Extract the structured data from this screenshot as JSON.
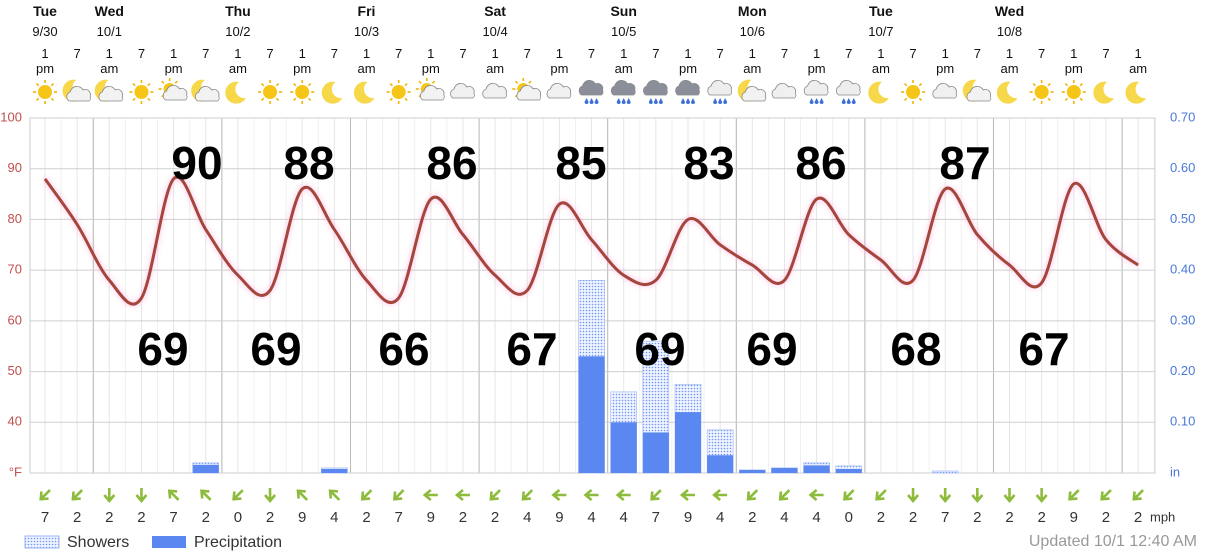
{
  "chart_data": {
    "type": "line",
    "days": [
      {
        "name": "Tue",
        "date": "9/30"
      },
      {
        "name": "Wed",
        "date": "10/1"
      },
      {
        "name": "Thu",
        "date": "10/2"
      },
      {
        "name": "Fri",
        "date": "10/3"
      },
      {
        "name": "Sat",
        "date": "10/4"
      },
      {
        "name": "Sun",
        "date": "10/5"
      },
      {
        "name": "Mon",
        "date": "10/6"
      },
      {
        "name": "Tue",
        "date": "10/7"
      },
      {
        "name": "Wed",
        "date": "10/8"
      }
    ],
    "categories": [
      "1\npm",
      "7",
      "1\nam",
      "7",
      "1\npm",
      "7",
      "1\nam",
      "7",
      "1\npm",
      "7",
      "1\nam",
      "7",
      "1\npm",
      "7",
      "1\nam",
      "7",
      "1\npm",
      "7",
      "1\nam",
      "7",
      "1\npm",
      "7",
      "1\nam",
      "7",
      "1\npm",
      "7",
      "1\nam",
      "7",
      "1\npm",
      "7",
      "1\nam",
      "7",
      "1\npm",
      "7",
      "1\nam"
    ],
    "series": [
      {
        "name": "Temperature",
        "type": "line",
        "color": "#a4463c",
        "values": [
          88,
          79,
          68,
          64.5,
          88,
          78,
          69,
          66,
          86,
          78,
          68,
          64.5,
          84,
          77,
          69,
          66,
          83,
          76,
          69,
          68,
          80,
          75,
          71,
          68,
          84,
          77,
          72,
          68,
          86,
          77,
          71,
          67.5,
          87,
          76,
          71
        ]
      },
      {
        "name": "Showers",
        "type": "bar",
        "axis": "y2",
        "color": "#6f96f2",
        "values": [
          0,
          0,
          0,
          0,
          0,
          0.02,
          0,
          0,
          0,
          0.01,
          0,
          0,
          0,
          0,
          0,
          0,
          0,
          0.38,
          0.16,
          0.26,
          0.175,
          0.085,
          0.006,
          0.01,
          0.02,
          0.014,
          0,
          0,
          0.004,
          0,
          0,
          0,
          0,
          0,
          0
        ]
      },
      {
        "name": "Precipitation",
        "type": "bar",
        "axis": "y2",
        "color": "#5b87f0",
        "values": [
          0,
          0,
          0,
          0,
          0,
          0.016,
          0,
          0,
          0,
          0.008,
          0,
          0,
          0,
          0,
          0,
          0,
          0,
          0.23,
          0.1,
          0.08,
          0.12,
          0.035,
          0.006,
          0.01,
          0.015,
          0.008,
          0,
          0,
          0,
          0,
          0,
          0,
          0,
          0,
          0
        ]
      }
    ],
    "highs": [
      90,
      88,
      86,
      85,
      83,
      86,
      87
    ],
    "lows": [
      69,
      69,
      66,
      67,
      69,
      69,
      68,
      67
    ],
    "ylim": [
      30,
      100
    ],
    "yticks": [
      {
        "value": 30,
        "label": "°F"
      },
      40,
      50,
      60,
      70,
      80,
      90,
      100
    ],
    "y2lim": [
      0,
      0.7
    ],
    "y2ticks": [
      {
        "value": 0,
        "label": "in"
      },
      {
        "value": 0.1,
        "label": "0.10"
      },
      {
        "value": 0.2,
        "label": "0.20"
      },
      {
        "value": 0.3,
        "label": "0.30"
      },
      {
        "value": 0.4,
        "label": "0.40"
      },
      {
        "value": 0.5,
        "label": "0.50"
      },
      {
        "value": 0.6,
        "label": "0.60"
      },
      {
        "value": 0.7,
        "label": "0.70"
      }
    ],
    "grid": true,
    "wind": {
      "values": [
        7,
        2,
        2,
        2,
        7,
        2,
        0,
        2,
        9,
        4,
        2,
        7,
        9,
        2,
        2,
        4,
        9,
        4,
        4,
        7,
        9,
        4,
        2,
        4,
        4,
        0,
        2,
        2,
        7,
        2,
        2,
        2,
        9,
        2,
        2
      ],
      "unit": "mph"
    },
    "updated": "Updated 10/1 12:40 AM"
  }
}
